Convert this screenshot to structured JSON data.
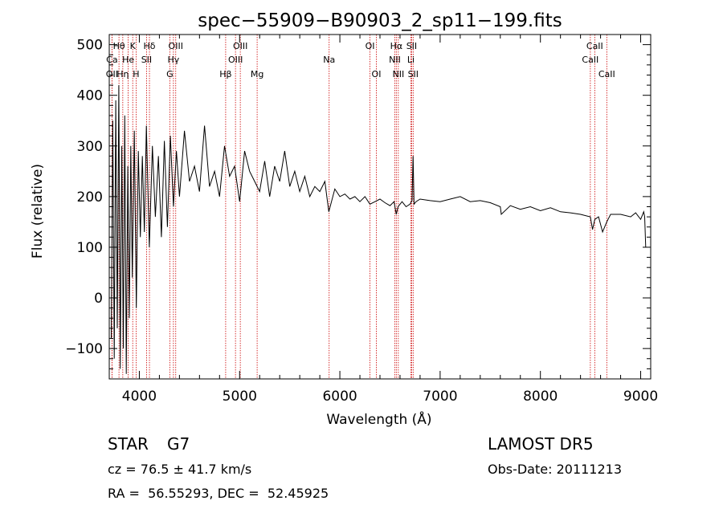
{
  "chart_data": {
    "type": "line",
    "title": "spec−55909−B90903_2_sp11−199.fits",
    "xlabel": "Wavelength (Å)",
    "ylabel": "Flux (relative)",
    "xlim": [
      3700,
      9100
    ],
    "ylim": [
      -160,
      520
    ],
    "x_ticks": [
      4000,
      5000,
      6000,
      7000,
      8000,
      9000
    ],
    "y_ticks": [
      -100,
      0,
      100,
      200,
      300,
      400,
      500
    ],
    "y_tick_labels": [
      "−100",
      "0",
      "100",
      "200",
      "300",
      "400",
      "500"
    ],
    "grid": false,
    "series": [
      {
        "x": [
          3720,
          3735,
          3750,
          3765,
          3780,
          3795,
          3810,
          3825,
          3840,
          3855,
          3870,
          3885,
          3900,
          3915,
          3930,
          3950,
          3970,
          3990,
          4010,
          4030,
          4050,
          4070,
          4100,
          4130,
          4160,
          4190,
          4220,
          4250,
          4280,
          4310,
          4340,
          4370,
          4400,
          4450,
          4500,
          4550,
          4600,
          4650,
          4700,
          4750,
          4800,
          4850,
          4900,
          4950,
          5000,
          5050,
          5100,
          5150,
          5200,
          5250,
          5300,
          5350,
          5400,
          5450,
          5500,
          5550,
          5600,
          5650,
          5700,
          5750,
          5800,
          5850,
          5890,
          5950,
          6000,
          6050,
          6100,
          6150,
          6200,
          6250,
          6300,
          6350,
          6400,
          6450,
          6500,
          6540,
          6563,
          6580,
          6620,
          6660,
          6700,
          6720,
          6730,
          6740,
          6760,
          6800,
          6900,
          7000,
          7100,
          7200,
          7300,
          7400,
          7500,
          7600,
          7610,
          7700,
          7800,
          7900,
          8000,
          8100,
          8200,
          8300,
          8400,
          8498,
          8520,
          8542,
          8580,
          8620,
          8662,
          8700,
          8800,
          8900,
          8950,
          9000,
          9030,
          9040,
          9050
        ],
        "y": [
          -80,
          350,
          -120,
          390,
          -60,
          420,
          -140,
          300,
          -100,
          360,
          -150,
          260,
          -40,
          300,
          40,
          330,
          -20,
          290,
          120,
          280,
          130,
          340,
          100,
          300,
          160,
          280,
          120,
          310,
          140,
          320,
          180,
          290,
          200,
          330,
          230,
          260,
          210,
          340,
          220,
          250,
          200,
          300,
          240,
          260,
          190,
          290,
          250,
          230,
          210,
          270,
          200,
          260,
          230,
          290,
          220,
          250,
          210,
          240,
          200,
          220,
          210,
          230,
          170,
          215,
          200,
          205,
          195,
          200,
          190,
          200,
          185,
          190,
          195,
          188,
          182,
          190,
          165,
          180,
          190,
          180,
          185,
          192,
          280,
          185,
          190,
          195,
          192,
          190,
          195,
          200,
          190,
          192,
          188,
          180,
          165,
          182,
          175,
          180,
          172,
          178,
          170,
          168,
          165,
          160,
          135,
          155,
          160,
          130,
          150,
          165,
          165,
          160,
          168,
          155,
          170,
          160,
          100
        ]
      }
    ],
    "line_markers": [
      {
        "name": "Ca",
        "x": 3727,
        "row": 1
      },
      {
        "name": "OII",
        "x": 3727,
        "row": 2
      },
      {
        "name": "Hθ",
        "x": 3797,
        "row": 0
      },
      {
        "name": "Hη",
        "x": 3835,
        "row": 2
      },
      {
        "name": "He",
        "x": 3889,
        "row": 1
      },
      {
        "name": "K",
        "x": 3934,
        "row": 0
      },
      {
        "name": "H",
        "x": 3968,
        "row": 2
      },
      {
        "name": "Hδ",
        "x": 4101,
        "row": 0
      },
      {
        "name": "SII",
        "x": 4072,
        "row": 1
      },
      {
        "name": "G",
        "x": 4304,
        "row": 2
      },
      {
        "name": "OIII",
        "x": 4363,
        "row": 0
      },
      {
        "name": "Hγ",
        "x": 4340,
        "row": 1
      },
      {
        "name": "Hβ",
        "x": 4861,
        "row": 2
      },
      {
        "name": "OIII",
        "x": 5007,
        "row": 0
      },
      {
        "name": "OIII",
        "x": 4959,
        "row": 1
      },
      {
        "name": "Mg",
        "x": 5175,
        "row": 2
      },
      {
        "name": "Na",
        "x": 5893,
        "row": 1
      },
      {
        "name": "OI",
        "x": 6300,
        "row": 0
      },
      {
        "name": "OI",
        "x": 6364,
        "row": 2
      },
      {
        "name": "Hα",
        "x": 6563,
        "row": 0
      },
      {
        "name": "NII",
        "x": 6548,
        "row": 1
      },
      {
        "name": "NII",
        "x": 6583,
        "row": 2
      },
      {
        "name": "SII",
        "x": 6716,
        "row": 0
      },
      {
        "name": "Li",
        "x": 6708,
        "row": 1
      },
      {
        "name": "SII",
        "x": 6731,
        "row": 2
      },
      {
        "name": "CaII",
        "x": 8542,
        "row": 0
      },
      {
        "name": "CaII",
        "x": 8498,
        "row": 1
      },
      {
        "name": "CaII",
        "x": 8662,
        "row": 2
      }
    ],
    "colors": {
      "spectrum": "#000000",
      "marker_line": "#cc0000",
      "frame": "#000000"
    }
  },
  "info": {
    "class": "STAR",
    "subclass": "G7",
    "redshift": "cz = 76.5 ± 41.7 km/s",
    "coords": "RA =  56.55293, DEC =  52.45925",
    "survey": "LAMOST DR5",
    "obs_date": "Obs-Date: 20111213"
  }
}
